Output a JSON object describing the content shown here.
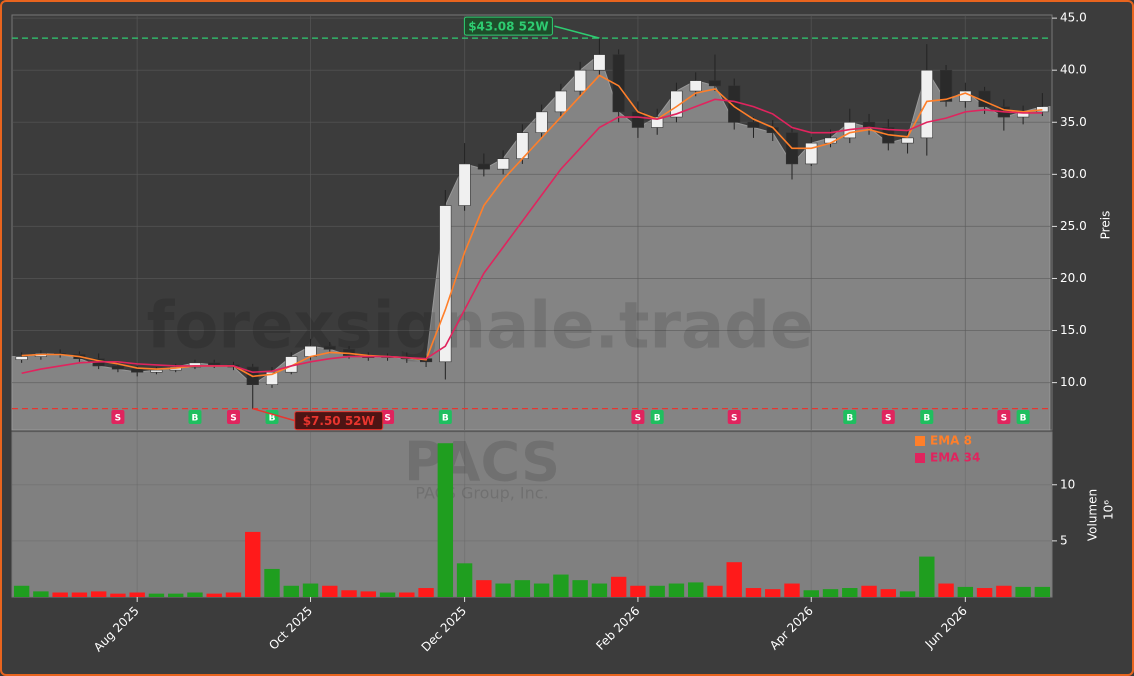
{
  "chart_data": {
    "type": "candlestick",
    "watermark": "forexsignale.trade",
    "ticker": "PACS",
    "company": "PACS Group, Inc.",
    "ylabel": "Preis",
    "volume_label": "Volumen",
    "volume_unit": "10⁶",
    "categories": [
      null,
      null,
      null,
      null,
      null,
      null,
      "Aug 2025",
      null,
      null,
      null,
      null,
      null,
      null,
      null,
      null,
      "Oct 2025",
      null,
      null,
      null,
      null,
      null,
      null,
      null,
      "Dec 2025",
      null,
      null,
      null,
      null,
      null,
      null,
      null,
      null,
      "Feb 2026",
      null,
      null,
      null,
      null,
      null,
      null,
      null,
      null,
      "Apr 2026",
      null,
      null,
      null,
      null,
      null,
      null,
      null,
      "Jun 2026",
      null,
      null,
      null,
      null
    ],
    "open": [
      12.2,
      12.5,
      12.8,
      12.7,
      12.3,
      11.6,
      11.3,
      11.0,
      11.2,
      11.5,
      11.9,
      11.7,
      11.5,
      9.8,
      11.0,
      12.5,
      13.5,
      13.2,
      12.6,
      12.4,
      12.5,
      12.3,
      12.0,
      27.0,
      31.0,
      30.5,
      31.5,
      34.0,
      36.0,
      38.0,
      40.0,
      41.5,
      36.0,
      34.5,
      35.5,
      38.0,
      39.0,
      38.5,
      35.0,
      34.5,
      34.0,
      31.0,
      33.0,
      33.5,
      35.0,
      34.5,
      33.0,
      33.5,
      40.0,
      37.0,
      38.0,
      36.5,
      35.5,
      36.0
    ],
    "high": [
      12.9,
      13.1,
      13.2,
      13.0,
      12.8,
      12.0,
      11.6,
      11.5,
      11.8,
      12.2,
      12.2,
      12.0,
      11.8,
      11.5,
      12.9,
      14.2,
      13.9,
      13.5,
      12.9,
      12.8,
      12.9,
      12.6,
      28.5,
      33.0,
      32.0,
      32.3,
      34.8,
      36.7,
      38.7,
      40.8,
      43.08,
      42.0,
      37.0,
      36.3,
      38.8,
      39.8,
      41.5,
      39.2,
      35.5,
      35.2,
      34.5,
      33.6,
      34.3,
      36.3,
      35.8,
      35.3,
      34.2,
      42.5,
      40.5,
      38.8,
      38.4,
      37.2,
      36.6,
      37.8
    ],
    "low": [
      11.9,
      12.2,
      12.4,
      12.0,
      11.3,
      11.0,
      10.6,
      10.8,
      11.0,
      11.3,
      11.4,
      11.2,
      7.5,
      9.5,
      10.8,
      12.2,
      12.8,
      12.3,
      12.1,
      12.1,
      11.9,
      11.5,
      10.3,
      26.5,
      29.8,
      30.0,
      31.0,
      33.5,
      35.5,
      37.5,
      39.5,
      35.0,
      33.5,
      33.8,
      35.0,
      37.5,
      38.0,
      34.3,
      33.5,
      33.2,
      29.5,
      30.8,
      32.6,
      33.0,
      33.8,
      32.3,
      32.0,
      31.8,
      36.5,
      36.4,
      35.8,
      34.2,
      34.8,
      35.6
    ],
    "close": [
      12.5,
      12.8,
      12.7,
      12.3,
      11.6,
      11.3,
      11.0,
      11.2,
      11.5,
      11.9,
      11.7,
      11.5,
      9.8,
      11.0,
      12.5,
      13.5,
      13.2,
      12.6,
      12.4,
      12.5,
      12.3,
      12.0,
      27.0,
      31.0,
      30.5,
      31.5,
      34.0,
      36.0,
      38.0,
      40.0,
      41.5,
      36.0,
      34.5,
      35.5,
      38.0,
      39.0,
      38.5,
      35.0,
      34.5,
      34.0,
      31.0,
      33.0,
      33.5,
      35.0,
      34.5,
      33.0,
      33.5,
      40.0,
      37.0,
      38.0,
      36.5,
      35.5,
      36.0,
      36.5
    ],
    "volume": [
      1.0,
      0.5,
      0.4,
      0.4,
      0.5,
      0.3,
      0.4,
      0.3,
      0.3,
      0.4,
      0.3,
      0.4,
      5.8,
      2.5,
      1.0,
      1.2,
      1.0,
      0.6,
      0.5,
      0.4,
      0.4,
      0.8,
      13.7,
      3.0,
      1.5,
      1.2,
      1.5,
      1.2,
      2.0,
      1.5,
      1.2,
      1.8,
      1.0,
      1.0,
      1.2,
      1.3,
      1.0,
      3.1,
      0.8,
      0.7,
      1.2,
      0.6,
      0.7,
      0.8,
      1.0,
      0.7,
      0.5,
      3.6,
      1.2,
      0.9,
      0.8,
      1.0,
      0.9,
      0.9
    ],
    "series": [
      {
        "name": "EMA 8",
        "color": "#ff7f2a",
        "values": [
          12.6,
          12.7,
          12.7,
          12.5,
          12.1,
          11.8,
          11.4,
          11.3,
          11.4,
          11.6,
          11.6,
          11.6,
          10.6,
          10.8,
          11.6,
          12.5,
          12.9,
          12.8,
          12.6,
          12.5,
          12.4,
          12.2,
          17,
          22.5,
          27,
          29.5,
          31.5,
          33.5,
          35.5,
          37.5,
          39.5,
          38.5,
          36,
          35.3,
          36.5,
          37.8,
          38.2,
          36.5,
          35.3,
          34.5,
          32.5,
          32.5,
          33,
          34,
          34.3,
          33.8,
          33.6,
          37,
          37.2,
          37.8,
          37,
          36.2,
          36,
          36.2
        ]
      },
      {
        "name": "EMA 34",
        "color": "#e0245e",
        "values": [
          10.9,
          11.3,
          11.6,
          11.9,
          12.0,
          12.0,
          11.8,
          11.7,
          11.6,
          11.6,
          11.6,
          11.6,
          11.0,
          11.1,
          11.6,
          12.0,
          12.3,
          12.5,
          12.5,
          12.5,
          12.4,
          12.3,
          13.5,
          17,
          20.5,
          23,
          25.5,
          28,
          30.5,
          32.5,
          34.5,
          35.5,
          35.5,
          35.3,
          35.8,
          36.5,
          37.2,
          37,
          36.5,
          35.8,
          34.5,
          34,
          34,
          34.3,
          34.5,
          34.3,
          34.2,
          35,
          35.4,
          36,
          36.2,
          36,
          35.9,
          35.9
        ]
      }
    ],
    "signals": [
      null,
      null,
      null,
      null,
      null,
      "S",
      null,
      null,
      null,
      "B",
      null,
      "S",
      null,
      "B",
      null,
      null,
      null,
      null,
      null,
      "S",
      null,
      null,
      "B",
      null,
      null,
      null,
      null,
      null,
      null,
      null,
      null,
      null,
      "S",
      "B",
      null,
      null,
      null,
      "S",
      null,
      null,
      null,
      null,
      null,
      "B",
      null,
      "S",
      null,
      "B",
      null,
      null,
      null,
      "S",
      "B",
      null
    ],
    "signal_colors": {
      "S": "#e0245e",
      "B": "#1fbf5f"
    },
    "annotations": [
      {
        "label": "$43.08 52W",
        "value": 43.08,
        "color": "#2ecc71"
      },
      {
        "label": "$7.50 52W",
        "value": 7.5,
        "color": "#e8352e"
      }
    ],
    "up_color": "#1f9e1f",
    "down_color": "#ff1a1a",
    "candle_up": "#f0f0f0",
    "candle_down": "#2a2a2a",
    "ylim": [
      5.45,
      45.3
    ],
    "yticks": [
      {
        "value": 10,
        "label": "10.0"
      },
      {
        "value": 15,
        "label": "15.0"
      },
      {
        "value": 20,
        "label": "20.0"
      },
      {
        "value": 25,
        "label": "25.0"
      },
      {
        "value": 30,
        "label": "30.0"
      },
      {
        "value": 35,
        "label": "35.0"
      },
      {
        "value": 40,
        "label": "40.0"
      },
      {
        "value": 45,
        "label": "45.0"
      }
    ],
    "volume_ylim": [
      0,
      14.7
    ],
    "volume_yticks": [
      5,
      10
    ],
    "grid": true
  }
}
